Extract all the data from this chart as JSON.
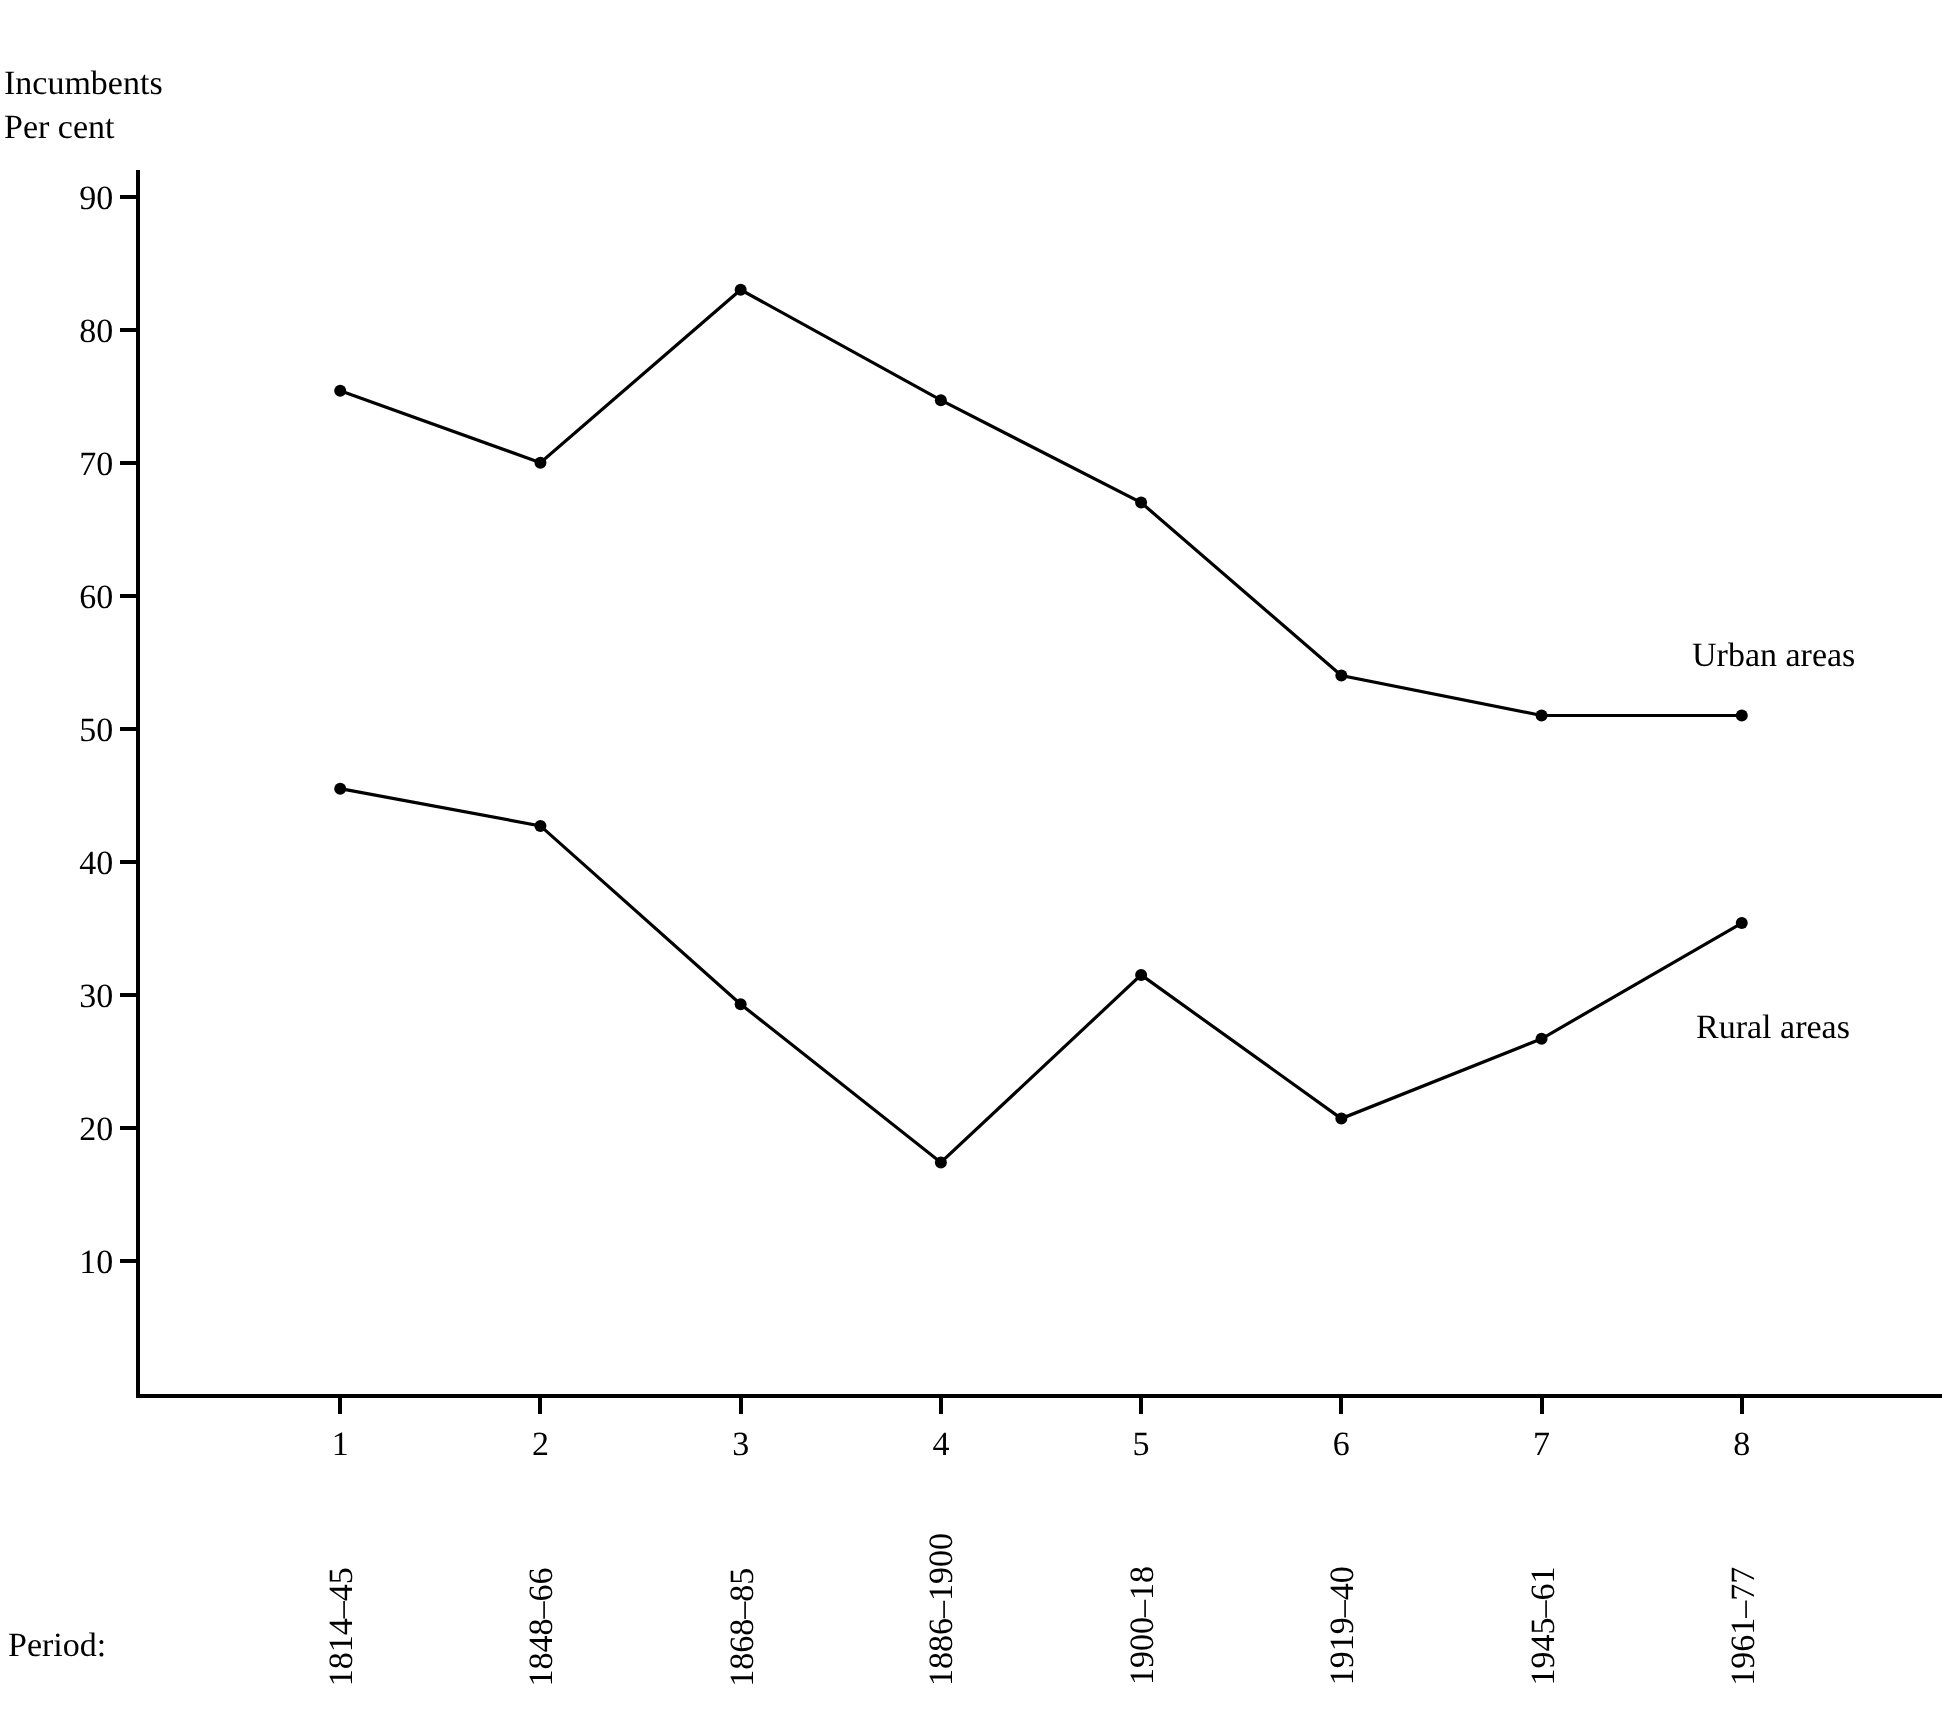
{
  "chart_data": {
    "type": "line",
    "ylabel": "Incumbents\nPer cent",
    "x": [
      1,
      2,
      3,
      4,
      5,
      6,
      7,
      8
    ],
    "xlim": [
      0,
      9
    ],
    "xticks": [
      1,
      2,
      3,
      4,
      5,
      6,
      7,
      8
    ],
    "ylim": [
      0,
      92
    ],
    "yticks": [
      10,
      20,
      30,
      40,
      50,
      60,
      70,
      80,
      90
    ],
    "series": [
      {
        "name": "Urban areas",
        "color": "#000000",
        "values": [
          75.4,
          70,
          83,
          74.7,
          67,
          54,
          51,
          51
        ]
      },
      {
        "name": "Rural areas",
        "color": "#000000",
        "values": [
          45.5,
          42.7,
          29.3,
          17.4,
          31.5,
          20.7,
          26.7,
          35.4
        ]
      }
    ],
    "annotations": [
      "Period:",
      "1814–45",
      "1848–66",
      "1868–85",
      "1886–1900",
      "1900–18",
      "1919–40",
      "1945–61",
      "1961–77"
    ],
    "legend": false,
    "marker": "circle",
    "line_style": "solid"
  }
}
